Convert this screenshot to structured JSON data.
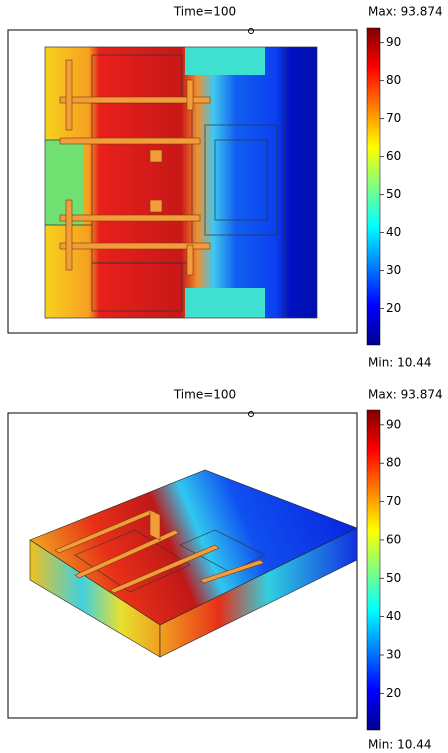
{
  "chart_data": [
    {
      "type": "heatmap",
      "title": "Time=100",
      "max_label": "Max: 93.874",
      "min_label": "Min: 10.44",
      "clim": [
        10.44,
        93.874
      ],
      "cticks": [
        20,
        30,
        40,
        50,
        60,
        70,
        80,
        90
      ]
    },
    {
      "type": "heatmap",
      "title": "Time=100",
      "max_label": "Max: 93.874",
      "min_label": "Min: 10.44",
      "clim": [
        10.44,
        93.874
      ],
      "cticks": [
        20,
        30,
        40,
        50,
        60,
        70,
        80,
        90
      ]
    }
  ]
}
